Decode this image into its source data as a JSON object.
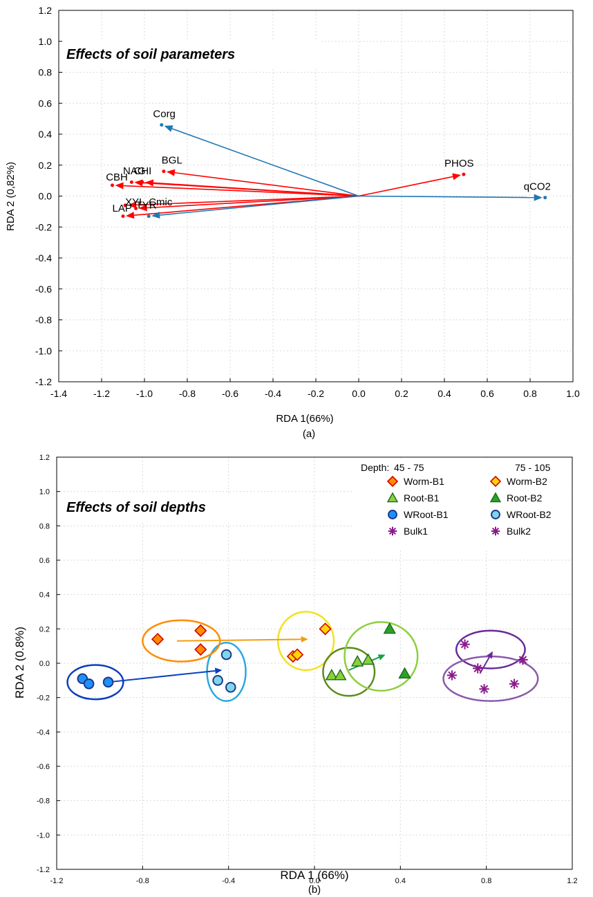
{
  "chart_data": [
    {
      "type": "scatter",
      "panel_label": "(a)",
      "annotation": "Effects of soil parameters",
      "xlabel": "RDA 1(66%)",
      "ylabel": "RDA 2 (0,82%)",
      "xlim": [
        -1.4,
        1.0
      ],
      "ylim": [
        -1.2,
        1.2
      ],
      "xticks": [
        "-1.4",
        "-1.2",
        "-1.0",
        "-0.8",
        "-0.6",
        "-0.4",
        "-0.2",
        "0.0",
        "0.2",
        "0.4",
        "0.6",
        "0.8",
        "1.0"
      ],
      "yticks": [
        "1.2",
        "1.0",
        "0.8",
        "0.6",
        "0.4",
        "0.2",
        "0.0",
        "-0.2",
        "-0.4",
        "-0.6",
        "-0.8",
        "-1.0",
        "-1.2"
      ],
      "grid": true,
      "colors": {
        "supplementary": "#1f77b4",
        "active": "#ff0000",
        "dark": "#c00000"
      },
      "vectors": [
        {
          "label": "Corg",
          "x": -0.92,
          "y": 0.46,
          "color": "#1f77b4",
          "label_dx": -0.04,
          "label_dy": 0.05
        },
        {
          "label": "qCO2",
          "x": 0.87,
          "y": -0.01,
          "color": "#1f77b4",
          "label_dx": -0.1,
          "label_dy": 0.05
        },
        {
          "label": "PHOS",
          "x": 0.49,
          "y": 0.14,
          "color": "#ff0000",
          "label_dx": -0.09,
          "label_dy": 0.05
        },
        {
          "label": "BGL",
          "x": -0.91,
          "y": 0.16,
          "color": "#ff0000",
          "label_dx": -0.01,
          "label_dy": 0.05
        },
        {
          "label": "NAG",
          "x": -1.06,
          "y": 0.09,
          "color": "#ff0000",
          "label_dx": -0.04,
          "label_dy": 0.05
        },
        {
          "label": "CHI",
          "x": -1.01,
          "y": 0.09,
          "color": "#ff0000",
          "label_dx": -0.04,
          "label_dy": 0.05
        },
        {
          "label": "CBH",
          "x": -1.15,
          "y": 0.07,
          "color": "#ff0000",
          "label_dx": -0.03,
          "label_dy": 0.03
        },
        {
          "label": "XYL",
          "x": -1.09,
          "y": -0.06,
          "color": "#ff0000",
          "label_dx": 0.0,
          "label_dy": 0.0
        },
        {
          "label": "LAP",
          "x": -1.1,
          "y": -0.13,
          "color": "#ff0000",
          "label_dx": -0.05,
          "label_dy": 0.03
        },
        {
          "label": "TYR",
          "x": -1.04,
          "y": -0.08,
          "color": "#ff0000",
          "label_dx": 0.0,
          "label_dy": 0.0
        },
        {
          "label": "Cmic",
          "x": -0.98,
          "y": -0.13,
          "color": "#1f77b4",
          "label_dx": 0.0,
          "label_dy": 0.07
        }
      ]
    },
    {
      "type": "scatter",
      "panel_label": "(b)",
      "annotation": "Effects of soil depths",
      "xlabel": "RDA 1 (66%)",
      "ylabel": "RDA 2 (0.8%)",
      "xlim": [
        -1.2,
        1.2
      ],
      "ylim": [
        -1.2,
        1.2
      ],
      "xticks": [
        "-1.2",
        "-0.8",
        "-0.4",
        "0.0",
        "0.4",
        "0.8",
        "1.2"
      ],
      "yticks": [
        "1.2",
        "1.0",
        "0.8",
        "0.6",
        "0.4",
        "0.2",
        "0.0",
        "-0.2",
        "-0.4",
        "-0.6",
        "-0.8",
        "-1.0",
        "-1.2"
      ],
      "grid": true,
      "legend": {
        "placement": "top-right",
        "depth_label": "Depth:",
        "depth1": "45 - 75",
        "depth2": "75 - 105",
        "entries": [
          {
            "left": "Worm-B1",
            "right": "Worm-B2",
            "marker": "diamond",
            "left_color": "#ff8c00",
            "right_color": "#ffd700",
            "stroke": "#d40000"
          },
          {
            "left": "Root-B1",
            "right": "Root-B2",
            "marker": "triangle",
            "left_color": "#8ccf3c",
            "right_color": "#2aa12a",
            "stroke": "#1a6b1a"
          },
          {
            "left": "WRoot-B1",
            "right": "WRoot-B2",
            "marker": "circle",
            "left_color": "#1e90ff",
            "right_color": "#7fd6ea",
            "stroke": "#1a3a8a"
          },
          {
            "left": "Bulk1",
            "right": "Bulk2",
            "marker": "star",
            "left_color": "#8b1a8b",
            "right_color": "#8b1a8b",
            "stroke": "#8b1a8b"
          }
        ]
      },
      "series": [
        {
          "name": "Worm-B1",
          "marker": "diamond",
          "fill": "#ff8c00",
          "stroke": "#d40000",
          "points": [
            [
              -0.73,
              0.14
            ],
            [
              -0.53,
              0.19
            ],
            [
              -0.53,
              0.08
            ]
          ]
        },
        {
          "name": "Worm-B2",
          "marker": "diamond",
          "fill": "#ffd700",
          "stroke": "#d40000",
          "points": [
            [
              -0.1,
              0.04
            ],
            [
              -0.08,
              0.05
            ],
            [
              0.05,
              0.2
            ]
          ]
        },
        {
          "name": "Root-B1",
          "marker": "triangle",
          "fill": "#8ccf3c",
          "stroke": "#1a6b1a",
          "points": [
            [
              0.08,
              -0.07
            ],
            [
              0.12,
              -0.07
            ],
            [
              0.2,
              0.01
            ],
            [
              0.25,
              0.02
            ]
          ]
        },
        {
          "name": "Root-B2",
          "marker": "triangle",
          "fill": "#2aa12a",
          "stroke": "#1a6b1a",
          "points": [
            [
              0.35,
              0.2
            ],
            [
              0.42,
              -0.06
            ]
          ]
        },
        {
          "name": "WRoot-B1",
          "marker": "circle",
          "fill": "#1e90ff",
          "stroke": "#1a3a8a",
          "points": [
            [
              -1.08,
              -0.09
            ],
            [
              -1.05,
              -0.12
            ],
            [
              -0.96,
              -0.11
            ]
          ]
        },
        {
          "name": "WRoot-B2",
          "marker": "circle",
          "fill": "#7fd6ea",
          "stroke": "#1a3a8a",
          "points": [
            [
              -0.41,
              0.05
            ],
            [
              -0.45,
              -0.1
            ],
            [
              -0.39,
              -0.14
            ]
          ]
        },
        {
          "name": "Bulk1",
          "marker": "star",
          "fill": "#8b1a8b",
          "stroke": "#8b1a8b",
          "points": [
            [
              0.64,
              -0.07
            ],
            [
              0.79,
              -0.15
            ],
            [
              0.93,
              -0.12
            ]
          ]
        },
        {
          "name": "Bulk2",
          "marker": "star",
          "fill": "#8b1a8b",
          "stroke": "#8b1a8b",
          "points": [
            [
              0.7,
              0.11
            ],
            [
              0.76,
              -0.03
            ],
            [
              0.97,
              0.02
            ]
          ]
        }
      ],
      "ellipses": [
        {
          "cx": -1.02,
          "cy": -0.11,
          "rx": 0.13,
          "ry": 0.1,
          "color": "#0b3fbf"
        },
        {
          "cx": -0.41,
          "cy": -0.05,
          "rx": 0.09,
          "ry": 0.17,
          "color": "#29a8e0"
        },
        {
          "cx": -0.62,
          "cy": 0.13,
          "rx": 0.18,
          "ry": 0.12,
          "color": "#ff8c00"
        },
        {
          "cx": -0.04,
          "cy": 0.13,
          "rx": 0.13,
          "ry": 0.17,
          "color": "#f2e21b"
        },
        {
          "cx": 0.16,
          "cy": -0.05,
          "rx": 0.12,
          "ry": 0.14,
          "color": "#5a8a1e"
        },
        {
          "cx": 0.31,
          "cy": 0.04,
          "rx": 0.17,
          "ry": 0.2,
          "color": "#8ccf3c"
        },
        {
          "cx": 0.82,
          "cy": 0.08,
          "rx": 0.16,
          "ry": 0.11,
          "color": "#6a2a9a"
        },
        {
          "cx": 0.82,
          "cy": -0.09,
          "rx": 0.22,
          "ry": 0.13,
          "color": "#8a5aaa"
        }
      ],
      "shift_arrows": [
        {
          "from": [
            -0.96,
            -0.11
          ],
          "to": [
            -0.43,
            -0.04
          ],
          "color": "#0b3fbf"
        },
        {
          "from": [
            -0.64,
            0.13
          ],
          "to": [
            -0.03,
            0.14
          ],
          "color": "#f39c12"
        },
        {
          "from": [
            0.16,
            -0.04
          ],
          "to": [
            0.33,
            0.05
          ],
          "color": "#16a04a"
        },
        {
          "from": [
            0.77,
            -0.06
          ],
          "to": [
            0.83,
            0.07
          ],
          "color": "#6a2a9a"
        }
      ]
    }
  ]
}
